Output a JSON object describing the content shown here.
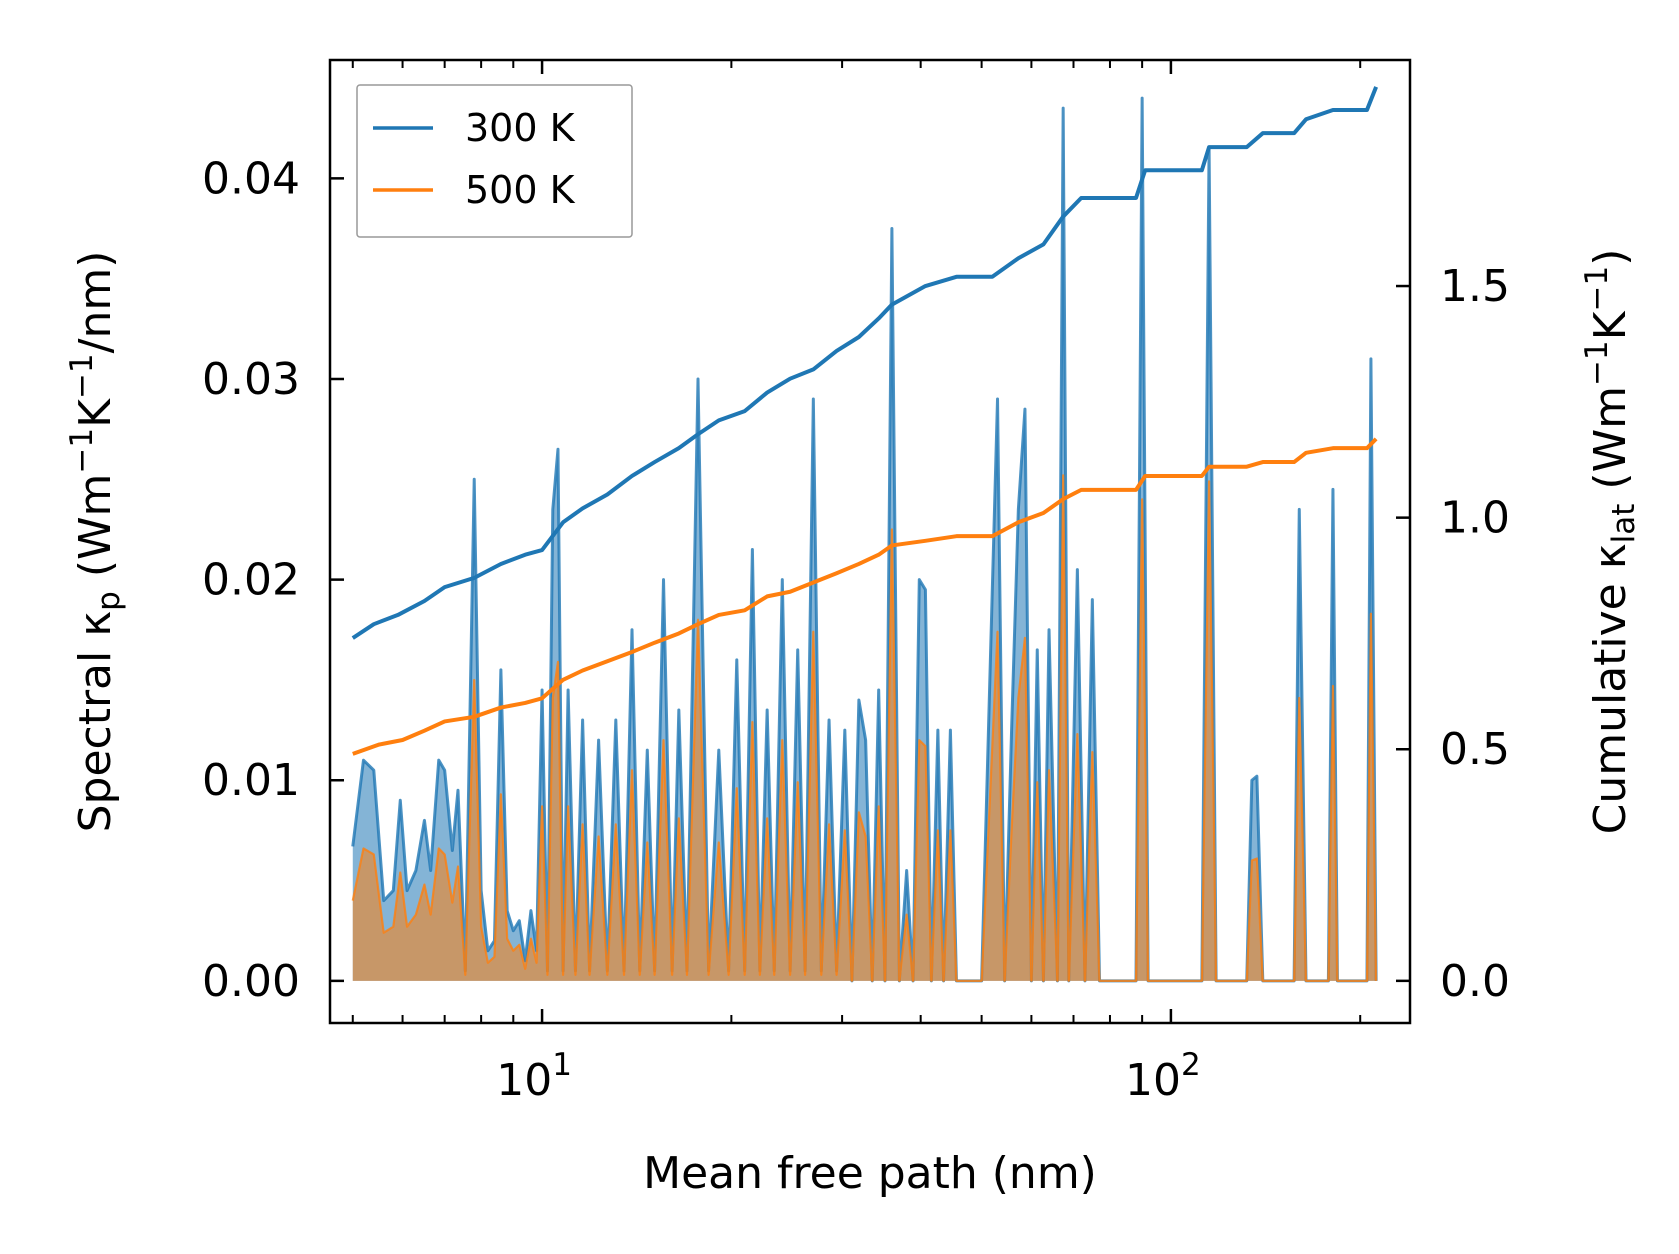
{
  "chart_data": {
    "type": "line",
    "title": "",
    "xlabel": "Mean free path (nm)",
    "xscale": "log",
    "xlim": [
      4.6,
      240
    ],
    "xticks": [
      {
        "value": 10,
        "base": "10",
        "exp": "1"
      },
      {
        "value": 100,
        "base": "10",
        "exp": "2"
      }
    ],
    "left_axis": {
      "label_parts": {
        "pre": "Spectral κ",
        "sub": "p",
        "mid1": " (Wm",
        "sup1": "−1",
        "mid2": "K",
        "sup2": "−1",
        "post": "/nm)"
      },
      "ylim": [
        -0.0021,
        0.0459
      ],
      "ticks": [
        "0.00",
        "0.01",
        "0.02",
        "0.03",
        "0.04"
      ],
      "tick_values": [
        0,
        0.01,
        0.02,
        0.03,
        0.04
      ]
    },
    "right_axis": {
      "label_parts": {
        "pre": "Cumulative κ",
        "sub": "lat",
        "mid1": " (Wm",
        "sup1": "−1",
        "mid2": "K",
        "sup2": "−1",
        "post": ")"
      },
      "ylim": [
        -0.091,
        1.988
      ],
      "ticks": [
        "0.0",
        "0.5",
        "1.0",
        "1.5"
      ],
      "tick_values": [
        0,
        0.5,
        1.0,
        1.5
      ]
    },
    "legend": {
      "placement": "upper-left",
      "entries": [
        "300 K",
        "500 K"
      ]
    },
    "colors": {
      "300 K": "#1f77b4",
      "500 K": "#ff7f0e"
    },
    "spectral": {
      "300 K": [
        [
          5.0,
          0.0067
        ],
        [
          5.2,
          0.011
        ],
        [
          5.4,
          0.0105
        ],
        [
          5.6,
          0.004
        ],
        [
          5.8,
          0.0045
        ],
        [
          5.95,
          0.009
        ],
        [
          6.1,
          0.0045
        ],
        [
          6.3,
          0.0055
        ],
        [
          6.5,
          0.008
        ],
        [
          6.65,
          0.0055
        ],
        [
          6.85,
          0.011
        ],
        [
          7.0,
          0.0105
        ],
        [
          7.2,
          0.0065
        ],
        [
          7.35,
          0.0095
        ],
        [
          7.55,
          0.0005
        ],
        [
          7.8,
          0.025
        ],
        [
          8.0,
          0.0045
        ],
        [
          8.2,
          0.0015
        ],
        [
          8.4,
          0.002
        ],
        [
          8.6,
          0.0155
        ],
        [
          8.8,
          0.0035
        ],
        [
          9.0,
          0.0025
        ],
        [
          9.2,
          0.003
        ],
        [
          9.4,
          0.001
        ],
        [
          9.6,
          0.0035
        ],
        [
          9.8,
          0.0015
        ],
        [
          10.0,
          0.0145
        ],
        [
          10.2,
          0.0005
        ],
        [
          10.4,
          0.0235
        ],
        [
          10.6,
          0.0265
        ],
        [
          10.8,
          0.0005
        ],
        [
          11.0,
          0.0145
        ],
        [
          11.3,
          0.0005
        ],
        [
          11.6,
          0.013
        ],
        [
          11.9,
          0.0005
        ],
        [
          12.3,
          0.012
        ],
        [
          12.7,
          0.0005
        ],
        [
          13.1,
          0.013
        ],
        [
          13.5,
          0.0005
        ],
        [
          13.9,
          0.0175
        ],
        [
          14.3,
          0.0005
        ],
        [
          14.7,
          0.0115
        ],
        [
          15.1,
          0.0005
        ],
        [
          15.6,
          0.02
        ],
        [
          16.1,
          0.0005
        ],
        [
          16.5,
          0.0135
        ],
        [
          17.0,
          0.0005
        ],
        [
          17.7,
          0.03
        ],
        [
          18.4,
          0.0005
        ],
        [
          19.1,
          0.0115
        ],
        [
          19.8,
          0.0005
        ],
        [
          20.4,
          0.016
        ],
        [
          21.0,
          0.0005
        ],
        [
          21.6,
          0.0215
        ],
        [
          22.2,
          0.0005
        ],
        [
          22.8,
          0.0135
        ],
        [
          23.4,
          0.0005
        ],
        [
          24.1,
          0.02
        ],
        [
          24.8,
          0.0005
        ],
        [
          25.5,
          0.0165
        ],
        [
          26.2,
          0.0005
        ],
        [
          27.0,
          0.029
        ],
        [
          27.8,
          0.0005
        ],
        [
          28.6,
          0.013
        ],
        [
          29.4,
          0.0005
        ],
        [
          30.3,
          0.0125
        ],
        [
          31.1,
          0.0
        ],
        [
          31.9,
          0.014
        ],
        [
          32.7,
          0.012
        ],
        [
          33.5,
          0.0
        ],
        [
          34.3,
          0.0145
        ],
        [
          35.1,
          0.0
        ],
        [
          36.0,
          0.0375
        ],
        [
          37.0,
          0.0
        ],
        [
          38.0,
          0.0055
        ],
        [
          38.9,
          0.0
        ],
        [
          39.8,
          0.02
        ],
        [
          40.7,
          0.0195
        ],
        [
          41.6,
          0.0
        ],
        [
          42.6,
          0.0125
        ],
        [
          43.5,
          0.0
        ],
        [
          44.6,
          0.0125
        ],
        [
          45.6,
          0.0
        ],
        [
          50.0,
          0.0
        ],
        [
          53.0,
          0.029
        ],
        [
          54.4,
          0.0
        ],
        [
          55.8,
          0.0125
        ],
        [
          57.2,
          0.0235
        ],
        [
          58.6,
          0.0285
        ],
        [
          60.0,
          0.0
        ],
        [
          61.3,
          0.0165
        ],
        [
          62.7,
          0.0
        ],
        [
          64.0,
          0.0175
        ],
        [
          66.0,
          0.0
        ],
        [
          67.4,
          0.0435
        ],
        [
          68.8,
          0.0
        ],
        [
          71.0,
          0.0205
        ],
        [
          73.0,
          0.0
        ],
        [
          75.0,
          0.019
        ],
        [
          77.0,
          0.0
        ],
        [
          88.0,
          0.0
        ],
        [
          90.0,
          0.044
        ],
        [
          92.0,
          0.0
        ],
        [
          112.0,
          0.0
        ],
        [
          115.0,
          0.0415
        ],
        [
          118.0,
          0.0
        ],
        [
          132.0,
          0.0
        ],
        [
          134.5,
          0.01
        ],
        [
          137.0,
          0.0102
        ],
        [
          140.0,
          0.0
        ],
        [
          157.0,
          0.0
        ],
        [
          160.0,
          0.0235
        ],
        [
          164.0,
          0.0
        ],
        [
          178.0,
          0.0
        ],
        [
          181.0,
          0.0245
        ],
        [
          184.0,
          0.0
        ],
        [
          205.0,
          0.0
        ],
        [
          208.0,
          0.031
        ],
        [
          212.0,
          0.0
        ]
      ],
      "500 K": [
        [
          5.0,
          0.004
        ],
        [
          5.2,
          0.0066
        ],
        [
          5.4,
          0.0063
        ],
        [
          5.6,
          0.0024
        ],
        [
          5.8,
          0.0027
        ],
        [
          5.95,
          0.0054
        ],
        [
          6.1,
          0.0027
        ],
        [
          6.3,
          0.0033
        ],
        [
          6.5,
          0.0048
        ],
        [
          6.65,
          0.0033
        ],
        [
          6.85,
          0.0066
        ],
        [
          7.0,
          0.0063
        ],
        [
          7.2,
          0.0039
        ],
        [
          7.35,
          0.0057
        ],
        [
          7.55,
          0.0003
        ],
        [
          7.8,
          0.015
        ],
        [
          8.0,
          0.0027
        ],
        [
          8.2,
          0.0009
        ],
        [
          8.4,
          0.0012
        ],
        [
          8.6,
          0.0093
        ],
        [
          8.8,
          0.0021
        ],
        [
          9.0,
          0.0015
        ],
        [
          9.2,
          0.0018
        ],
        [
          9.4,
          0.0006
        ],
        [
          9.6,
          0.0021
        ],
        [
          9.8,
          0.0009
        ],
        [
          10.0,
          0.0087
        ],
        [
          10.2,
          0.0003
        ],
        [
          10.4,
          0.0141
        ],
        [
          10.6,
          0.0159
        ],
        [
          10.8,
          0.0003
        ],
        [
          11.0,
          0.0087
        ],
        [
          11.3,
          0.0003
        ],
        [
          11.6,
          0.0078
        ],
        [
          11.9,
          0.0003
        ],
        [
          12.3,
          0.0072
        ],
        [
          12.7,
          0.0003
        ],
        [
          13.1,
          0.0078
        ],
        [
          13.5,
          0.0003
        ],
        [
          13.9,
          0.0105
        ],
        [
          14.3,
          0.0003
        ],
        [
          14.7,
          0.0069
        ],
        [
          15.1,
          0.0003
        ],
        [
          15.6,
          0.012
        ],
        [
          16.1,
          0.0003
        ],
        [
          16.5,
          0.0081
        ],
        [
          17.0,
          0.0003
        ],
        [
          17.7,
          0.018
        ],
        [
          18.4,
          0.0003
        ],
        [
          19.1,
          0.0069
        ],
        [
          19.8,
          0.0003
        ],
        [
          20.4,
          0.0096
        ],
        [
          21.0,
          0.0003
        ],
        [
          21.6,
          0.0129
        ],
        [
          22.2,
          0.0003
        ],
        [
          22.8,
          0.0081
        ],
        [
          23.4,
          0.0003
        ],
        [
          24.1,
          0.012
        ],
        [
          24.8,
          0.0003
        ],
        [
          25.5,
          0.0099
        ],
        [
          26.2,
          0.0003
        ],
        [
          27.0,
          0.0174
        ],
        [
          27.8,
          0.0003
        ],
        [
          28.6,
          0.0078
        ],
        [
          29.4,
          0.0003
        ],
        [
          30.3,
          0.0075
        ],
        [
          31.1,
          0.0
        ],
        [
          31.9,
          0.0084
        ],
        [
          32.7,
          0.0072
        ],
        [
          33.5,
          0.0
        ],
        [
          34.3,
          0.0087
        ],
        [
          35.1,
          0.0
        ],
        [
          36.0,
          0.0225
        ],
        [
          37.0,
          0.0
        ],
        [
          38.0,
          0.0033
        ],
        [
          38.9,
          0.0
        ],
        [
          39.8,
          0.012
        ],
        [
          40.7,
          0.0117
        ],
        [
          41.6,
          0.0
        ],
        [
          42.6,
          0.0075
        ],
        [
          43.5,
          0.0
        ],
        [
          44.6,
          0.0075
        ],
        [
          45.6,
          0.0
        ],
        [
          50.0,
          0.0
        ],
        [
          53.0,
          0.0174
        ],
        [
          54.4,
          0.0
        ],
        [
          55.8,
          0.0075
        ],
        [
          57.2,
          0.0141
        ],
        [
          58.6,
          0.0171
        ],
        [
          60.0,
          0.0
        ],
        [
          61.3,
          0.0099
        ],
        [
          62.7,
          0.0
        ],
        [
          64.0,
          0.0105
        ],
        [
          66.0,
          0.0
        ],
        [
          67.4,
          0.0252
        ],
        [
          68.8,
          0.0
        ],
        [
          71.0,
          0.0123
        ],
        [
          73.0,
          0.0
        ],
        [
          75.0,
          0.0114
        ],
        [
          77.0,
          0.0
        ],
        [
          88.0,
          0.0
        ],
        [
          90.0,
          0.024
        ],
        [
          92.0,
          0.0
        ],
        [
          112.0,
          0.0
        ],
        [
          115.0,
          0.0249
        ],
        [
          118.0,
          0.0
        ],
        [
          132.0,
          0.0
        ],
        [
          134.5,
          0.006
        ],
        [
          137.0,
          0.0061
        ],
        [
          140.0,
          0.0
        ],
        [
          157.0,
          0.0
        ],
        [
          160.0,
          0.0141
        ],
        [
          164.0,
          0.0
        ],
        [
          178.0,
          0.0
        ],
        [
          181.0,
          0.0147
        ],
        [
          184.0,
          0.0
        ],
        [
          205.0,
          0.0
        ],
        [
          208.0,
          0.0183
        ],
        [
          212.0,
          0.0
        ]
      ]
    },
    "cumulative": {
      "300 K": [
        [
          5.0,
          0.74
        ],
        [
          5.4,
          0.77
        ],
        [
          5.9,
          0.79
        ],
        [
          6.5,
          0.82
        ],
        [
          7.0,
          0.85
        ],
        [
          7.8,
          0.87
        ],
        [
          8.6,
          0.9
        ],
        [
          9.4,
          0.92
        ],
        [
          10.0,
          0.93
        ],
        [
          10.8,
          0.99
        ],
        [
          11.6,
          1.02
        ],
        [
          12.7,
          1.05
        ],
        [
          13.9,
          1.09
        ],
        [
          15.1,
          1.12
        ],
        [
          16.5,
          1.15
        ],
        [
          17.7,
          1.18
        ],
        [
          19.1,
          1.21
        ],
        [
          21.0,
          1.23
        ],
        [
          22.8,
          1.27
        ],
        [
          24.8,
          1.3
        ],
        [
          27.0,
          1.32
        ],
        [
          29.4,
          1.36
        ],
        [
          31.9,
          1.39
        ],
        [
          34.3,
          1.43
        ],
        [
          36.0,
          1.46
        ],
        [
          40.7,
          1.5
        ],
        [
          45.6,
          1.52
        ],
        [
          52.0,
          1.52
        ],
        [
          57.2,
          1.56
        ],
        [
          62.7,
          1.59
        ],
        [
          67.4,
          1.65
        ],
        [
          72.0,
          1.69
        ],
        [
          88.0,
          1.69
        ],
        [
          91.0,
          1.75
        ],
        [
          112.0,
          1.75
        ],
        [
          115.0,
          1.8
        ],
        [
          132.0,
          1.8
        ],
        [
          140.0,
          1.83
        ],
        [
          157.0,
          1.83
        ],
        [
          164.0,
          1.86
        ],
        [
          181.0,
          1.88
        ],
        [
          205.0,
          1.88
        ],
        [
          212.0,
          1.93
        ]
      ],
      "500 K": [
        [
          5.0,
          0.49
        ],
        [
          5.5,
          0.51
        ],
        [
          6.0,
          0.52
        ],
        [
          6.5,
          0.54
        ],
        [
          7.0,
          0.56
        ],
        [
          7.8,
          0.57
        ],
        [
          8.6,
          0.59
        ],
        [
          9.4,
          0.6
        ],
        [
          10.0,
          0.61
        ],
        [
          10.8,
          0.65
        ],
        [
          11.6,
          0.67
        ],
        [
          12.7,
          0.69
        ],
        [
          13.9,
          0.71
        ],
        [
          15.1,
          0.73
        ],
        [
          16.5,
          0.75
        ],
        [
          17.7,
          0.77
        ],
        [
          19.1,
          0.79
        ],
        [
          21.0,
          0.8
        ],
        [
          22.8,
          0.83
        ],
        [
          24.8,
          0.84
        ],
        [
          27.0,
          0.86
        ],
        [
          29.4,
          0.88
        ],
        [
          31.9,
          0.9
        ],
        [
          34.3,
          0.92
        ],
        [
          36.0,
          0.94
        ],
        [
          40.7,
          0.95
        ],
        [
          45.6,
          0.96
        ],
        [
          52.0,
          0.96
        ],
        [
          57.2,
          0.99
        ],
        [
          62.7,
          1.01
        ],
        [
          67.4,
          1.04
        ],
        [
          72.0,
          1.06
        ],
        [
          88.0,
          1.06
        ],
        [
          91.0,
          1.09
        ],
        [
          112.0,
          1.09
        ],
        [
          115.0,
          1.11
        ],
        [
          132.0,
          1.11
        ],
        [
          140.0,
          1.12
        ],
        [
          157.0,
          1.12
        ],
        [
          164.0,
          1.14
        ],
        [
          181.0,
          1.15
        ],
        [
          205.0,
          1.15
        ],
        [
          212.0,
          1.17
        ]
      ]
    }
  }
}
